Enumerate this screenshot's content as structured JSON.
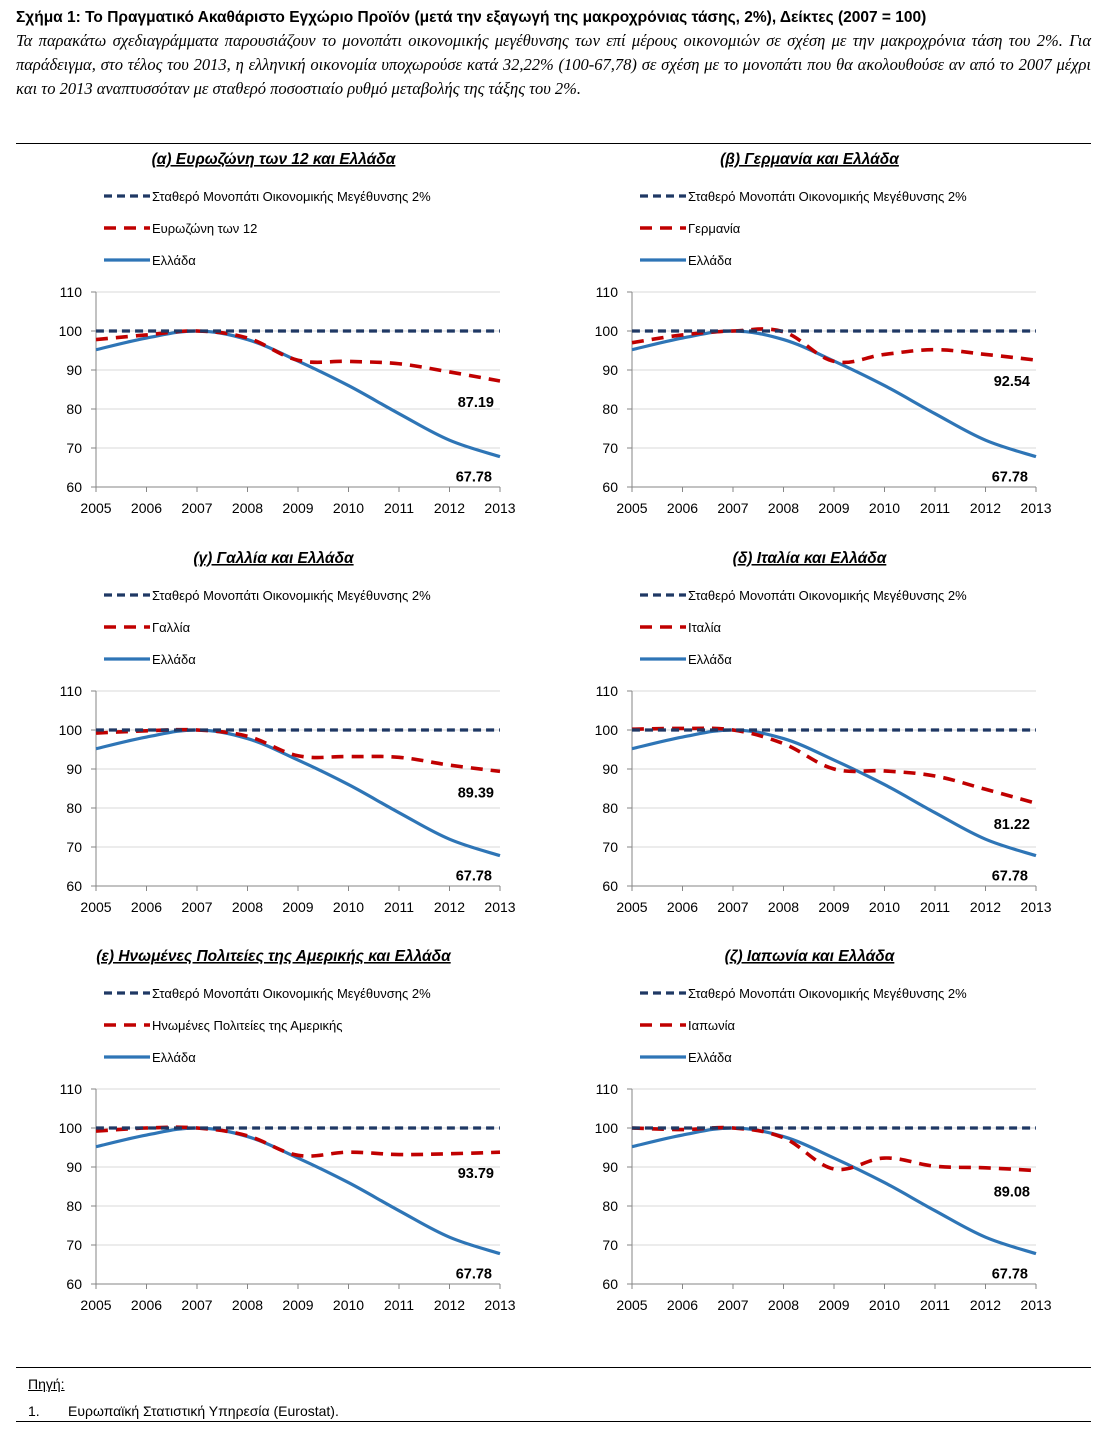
{
  "figure": {
    "title": "Σχήμα 1: Το Πραγματικό Ακαθάριστο Εγχώριο Προϊόν (μετά την εξαγωγή της μακροχρόνιας τάσης, 2%), Δείκτες (2007 = 100)",
    "description": "Τα παρακάτω σχεδιαγράμματα παρουσιάζουν το μονοπάτι οικονομικής μεγέθυνσης των επί μέρους οικονομιών σε σχέση με την μακροχρόνια τάση του 2%. Για παράδειγμα, στο τέλος του 2013, η ελληνική οικονομία υποχωρούσε κατά 32,22% (100-67,78) σε σχέση με το μονοπάτι που θα ακολουθούσε αν από το 2007 μέχρι και το 2013 αναπτυσσόταν με σταθερό ποσοστιαίο ρυθμό μεταβολής της τάξης του 2%."
  },
  "colors": {
    "trend": "#1f3864",
    "comparison": "#c00000",
    "greece": "#2e75b6",
    "grid": "#d9d9d9"
  },
  "chart_data": [
    {
      "type": "line",
      "title": "(α) Ευρωζώνη των 12 και Ελλάδα",
      "x": [
        "2005",
        "2006",
        "2007",
        "2008",
        "2009",
        "2010",
        "2011",
        "2012",
        "2013"
      ],
      "ylim": [
        60,
        110
      ],
      "yticks": [
        "60",
        "70",
        "80",
        "90",
        "100",
        "110"
      ],
      "series": [
        {
          "name": "Σταθερό Μονοπάτι Οικονομικής Μεγέθυνσης 2%",
          "values": [
            100,
            100,
            100,
            100,
            100,
            100,
            100,
            100,
            100
          ]
        },
        {
          "name": "Ευρωζώνη των 12",
          "values": [
            97.8,
            99,
            100,
            98.2,
            92.5,
            92.2,
            91.6,
            89.5,
            87.19
          ]
        },
        {
          "name": "Ελλάδα",
          "values": [
            95.2,
            98.2,
            100,
            97.8,
            92.3,
            86,
            78.8,
            72,
            67.78
          ]
        }
      ],
      "end_labels": {
        "comparison": "87.19",
        "greece": "67.78"
      }
    },
    {
      "type": "line",
      "title": "(β) Γερμανία και Ελλάδα",
      "x": [
        "2005",
        "2006",
        "2007",
        "2008",
        "2009",
        "2010",
        "2011",
        "2012",
        "2013"
      ],
      "ylim": [
        60,
        110
      ],
      "yticks": [
        "60",
        "70",
        "80",
        "90",
        "100",
        "110"
      ],
      "series": [
        {
          "name": "Σταθερό Μονοπάτι Οικονομικής Μεγέθυνσης 2%",
          "values": [
            100,
            100,
            100,
            100,
            100,
            100,
            100,
            100,
            100
          ]
        },
        {
          "name": "Γερμανία",
          "values": [
            97,
            99,
            100,
            99.8,
            92.2,
            94,
            95.2,
            94,
            92.54
          ]
        },
        {
          "name": "Ελλάδα",
          "values": [
            95.2,
            98.2,
            100,
            97.8,
            92.3,
            86,
            78.8,
            72,
            67.78
          ]
        }
      ],
      "end_labels": {
        "comparison": "92.54",
        "greece": "67.78"
      }
    },
    {
      "type": "line",
      "title": "(γ) Γαλλία και Ελλάδα",
      "x": [
        "2005",
        "2006",
        "2007",
        "2008",
        "2009",
        "2010",
        "2011",
        "2012",
        "2013"
      ],
      "ylim": [
        60,
        110
      ],
      "yticks": [
        "60",
        "70",
        "80",
        "90",
        "100",
        "110"
      ],
      "series": [
        {
          "name": "Σταθερό Μονοπάτι Οικονομικής Μεγέθυνσης 2%",
          "values": [
            100,
            100,
            100,
            100,
            100,
            100,
            100,
            100,
            100
          ]
        },
        {
          "name": "Γαλλία",
          "values": [
            99.2,
            99.8,
            100,
            98.4,
            93.4,
            93.2,
            93,
            91,
            89.39
          ]
        },
        {
          "name": "Ελλάδα",
          "values": [
            95.2,
            98.2,
            100,
            97.8,
            92.3,
            86,
            78.8,
            72,
            67.78
          ]
        }
      ],
      "end_labels": {
        "comparison": "89.39",
        "greece": "67.78"
      }
    },
    {
      "type": "line",
      "title": "(δ) Ιταλία και Ελλάδα",
      "x": [
        "2005",
        "2006",
        "2007",
        "2008",
        "2009",
        "2010",
        "2011",
        "2012",
        "2013"
      ],
      "ylim": [
        60,
        110
      ],
      "yticks": [
        "60",
        "70",
        "80",
        "90",
        "100",
        "110"
      ],
      "series": [
        {
          "name": "Σταθερό Μονοπάτι Οικονομικής Μεγέθυνσης 2%",
          "values": [
            100,
            100,
            100,
            100,
            100,
            100,
            100,
            100,
            100
          ]
        },
        {
          "name": "Ιταλία",
          "values": [
            100.2,
            100.4,
            100,
            96.5,
            90,
            89.5,
            88.2,
            84.8,
            81.22
          ]
        },
        {
          "name": "Ελλάδα",
          "values": [
            95.2,
            98.2,
            100,
            97.8,
            92.3,
            86,
            78.8,
            72,
            67.78
          ]
        }
      ],
      "end_labels": {
        "comparison": "81.22",
        "greece": "67.78"
      }
    },
    {
      "type": "line",
      "title": "(ε) Ηνωμένες Πολιτείες της Αμερικής και Ελλάδα",
      "x": [
        "2005",
        "2006",
        "2007",
        "2008",
        "2009",
        "2010",
        "2011",
        "2012",
        "2013"
      ],
      "ylim": [
        60,
        110
      ],
      "yticks": [
        "60",
        "70",
        "80",
        "90",
        "100",
        "110"
      ],
      "series": [
        {
          "name": "Σταθερό Μονοπάτι Οικονομικής Μεγέθυνσης 2%",
          "values": [
            100,
            100,
            100,
            100,
            100,
            100,
            100,
            100,
            100
          ]
        },
        {
          "name": "Ηνωμένες Πολιτείες της Αμερικής",
          "values": [
            99.2,
            100,
            100,
            98,
            93,
            93.8,
            93.2,
            93.4,
            93.79
          ]
        },
        {
          "name": "Ελλάδα",
          "values": [
            95.2,
            98.2,
            100,
            97.8,
            92.3,
            86,
            78.8,
            72,
            67.78
          ]
        }
      ],
      "end_labels": {
        "comparison": "93.79",
        "greece": "67.78"
      }
    },
    {
      "type": "line",
      "title": "(ζ) Ιαπωνία και Ελλάδα",
      "x": [
        "2005",
        "2006",
        "2007",
        "2008",
        "2009",
        "2010",
        "2011",
        "2012",
        "2013"
      ],
      "ylim": [
        60,
        110
      ],
      "yticks": [
        "60",
        "70",
        "80",
        "90",
        "100",
        "110"
      ],
      "series": [
        {
          "name": "Σταθερό Μονοπάτι Οικονομικής Μεγέθυνσης 2%",
          "values": [
            100,
            100,
            100,
            100,
            100,
            100,
            100,
            100,
            100
          ]
        },
        {
          "name": "Ιαπωνία",
          "values": [
            100,
            99.6,
            100,
            97.5,
            89.5,
            92.3,
            90.2,
            89.8,
            89.08
          ]
        },
        {
          "name": "Ελλάδα",
          "values": [
            95.2,
            98.2,
            100,
            97.8,
            92.3,
            86,
            78.8,
            72,
            67.78
          ]
        }
      ],
      "end_labels": {
        "comparison": "89.08",
        "greece": "67.78"
      }
    }
  ],
  "footer": {
    "source_label": "Πηγή:",
    "source_number": "1.",
    "source_text": "Ευρωπαϊκή Στατιστική Υπηρεσία (Eurostat)."
  }
}
